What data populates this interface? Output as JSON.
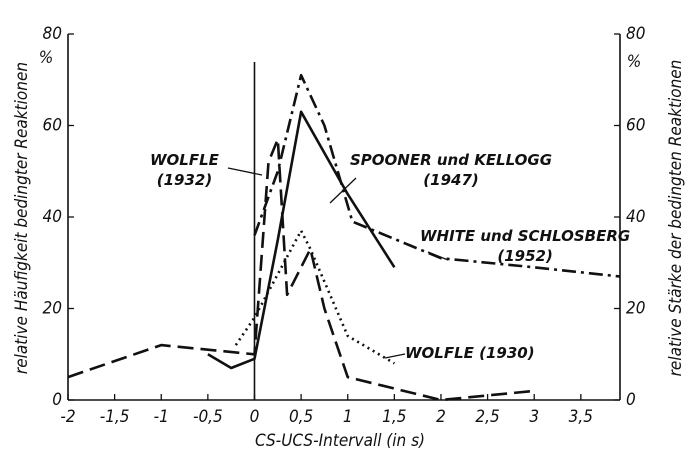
{
  "chart_data": {
    "type": "line",
    "x_label": "CS-UCS-Intervall (in s)",
    "y_label": "relative Häufigkeit bedingter Reaktionen",
    "y2_label": "relative Stärke der bedingten Reaktionen",
    "y_unit": "%",
    "y2_unit": "%",
    "xlim": [
      -2,
      3.92
    ],
    "xticks": [
      -2,
      {
        "value": -1.5,
        "label": "-1,5"
      },
      -1,
      {
        "value": -0.5,
        "label": "-0,5"
      },
      0,
      {
        "value": 0.5,
        "label": "0,5"
      },
      1,
      {
        "value": 1.5,
        "label": "1,5"
      },
      2,
      {
        "value": 2.5,
        "label": "2,5"
      },
      3,
      {
        "value": 3.5,
        "label": "3,5"
      }
    ],
    "ylim": [
      0,
      80
    ],
    "yticks": [
      0,
      20,
      40,
      60,
      80
    ],
    "y2lim": [
      0,
      80
    ],
    "y2ticks": [
      0,
      20,
      40,
      60,
      80
    ],
    "series": [
      {
        "name": "WOLFLE\n(1932)",
        "color": "#111111",
        "style": "dashed",
        "x": [
          -2,
          -1,
          -0.5,
          0,
          0.15,
          0.25,
          0.35,
          0.6,
          0.75,
          1,
          2,
          3
        ],
        "values": [
          5,
          12,
          11,
          10,
          52,
          57,
          23,
          33,
          20,
          5,
          0,
          2
        ]
      },
      {
        "name": "SPOONER und KELLOGG\n(1947)",
        "color": "#111111",
        "style": "solid",
        "x": [
          -0.5,
          -0.25,
          0,
          0.25,
          0.5,
          1,
          1.5
        ],
        "values": [
          10,
          7,
          9,
          35,
          63,
          45,
          29
        ]
      },
      {
        "name": "WHITE und SCHLOSBERG\n(1952)",
        "color": "#111111",
        "style": "dashdot",
        "x": [
          0,
          0.25,
          0.5,
          0.75,
          1.05,
          2,
          3,
          3.92
        ],
        "values": [
          36,
          50,
          71,
          60,
          39,
          31,
          29,
          27
        ]
      },
      {
        "name": "WOLFLE (1930)",
        "color": "#111111",
        "style": "dotted",
        "x": [
          -0.2,
          0,
          0.5,
          0.6,
          1,
          1.5
        ],
        "values": [
          12,
          18,
          37,
          33,
          14,
          8
        ]
      }
    ]
  }
}
